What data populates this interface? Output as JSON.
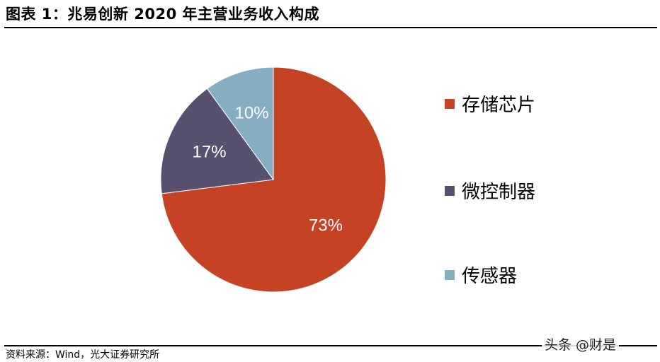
{
  "figure": {
    "title": "图表 1：兆易创新 2020 年主营业务收入构成",
    "source": "资料来源：Wind，光大证券研究所",
    "watermark": "头条 @财是"
  },
  "chart_data": {
    "type": "pie",
    "categories": [
      "存储芯片",
      "微控制器",
      "传感器"
    ],
    "values": [
      73,
      17,
      10
    ],
    "labels": [
      "73%",
      "17%",
      "10%"
    ],
    "colors": [
      "#C64224",
      "#57506F",
      "#86AEC3"
    ],
    "legend_position": "right"
  }
}
